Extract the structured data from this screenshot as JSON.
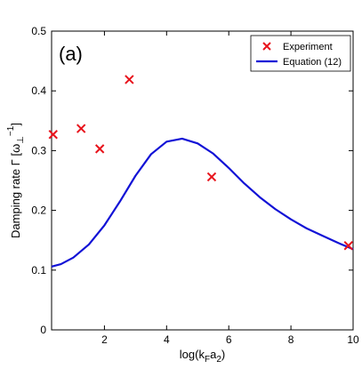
{
  "chart_data": {
    "type": "scatter+line",
    "panel_label": "(a)",
    "xlabel": {
      "main": "log(k",
      "sub1": "F",
      "mid": "a",
      "sub2": "2",
      "end": ")"
    },
    "ylabel": {
      "main": "Damping rate Γ   [ω",
      "sub": "⊥",
      "sup": "−1",
      "end": "]"
    },
    "xlim": [
      0.3,
      10
    ],
    "ylim": [
      0,
      0.5
    ],
    "xticks": [
      2,
      4,
      6,
      8,
      10
    ],
    "xtick_labels": [
      "2",
      "4",
      "6",
      "8",
      "10"
    ],
    "yticks": [
      0,
      0.1,
      0.2,
      0.3,
      0.4,
      0.5
    ],
    "ytick_labels": [
      "0",
      "0.1",
      "0.2",
      "0.3",
      "0.4",
      "0.5"
    ],
    "grid": false,
    "legend_position": "top-right",
    "series": [
      {
        "name": "Experiment",
        "kind": "scatter",
        "marker": "x",
        "color": "#e8141c",
        "x": [
          0.35,
          1.25,
          1.85,
          2.8,
          5.45,
          9.85
        ],
        "y": [
          0.327,
          0.337,
          0.303,
          0.419,
          0.256,
          0.141
        ]
      },
      {
        "name": "Equation (12)",
        "kind": "line",
        "color": "#1212d6",
        "x": [
          0.3,
          0.6,
          1.0,
          1.5,
          2.0,
          2.5,
          3.0,
          3.5,
          4.0,
          4.5,
          5.0,
          5.5,
          6.0,
          6.5,
          7.0,
          7.5,
          8.0,
          8.5,
          9.0,
          9.5,
          10.0
        ],
        "y": [
          0.106,
          0.11,
          0.121,
          0.143,
          0.175,
          0.215,
          0.258,
          0.294,
          0.315,
          0.32,
          0.312,
          0.295,
          0.271,
          0.245,
          0.222,
          0.202,
          0.185,
          0.17,
          0.158,
          0.146,
          0.135
        ]
      }
    ]
  }
}
